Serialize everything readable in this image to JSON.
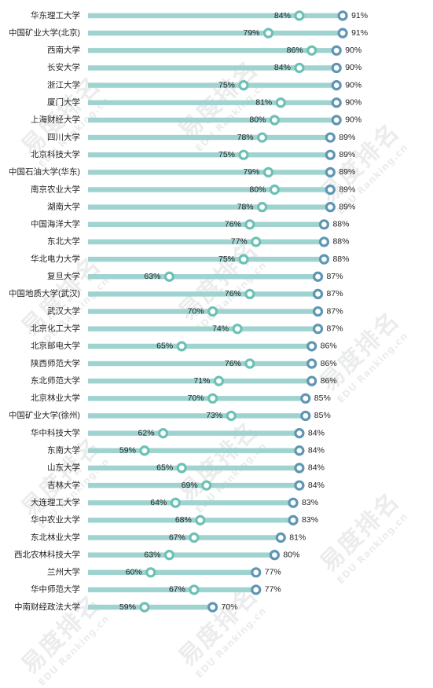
{
  "chart_data": {
    "type": "dot-range",
    "categories": [
      "华东理工大学",
      "中国矿业大学(北京)",
      "西南大学",
      "长安大学",
      "浙江大学",
      "厦门大学",
      "上海财经大学",
      "四川大学",
      "北京科技大学",
      "中国石油大学(华东)",
      "南京农业大学",
      "湖南大学",
      "中国海洋大学",
      "东北大学",
      "华北电力大学",
      "复旦大学",
      "中国地质大学(武汉)",
      "武汉大学",
      "北京化工大学",
      "北京邮电大学",
      "陕西师范大学",
      "东北师范大学",
      "北京林业大学",
      "中国矿业大学(徐州)",
      "华中科技大学",
      "东南大学",
      "山东大学",
      "吉林大学",
      "大连理工大学",
      "华中农业大学",
      "东北林业大学",
      "西北农林科技大学",
      "兰州大学",
      "华中师范大学",
      "中南财经政法大学"
    ],
    "series": [
      {
        "values": [
          84,
          79,
          86,
          84,
          75,
          81,
          80,
          78,
          75,
          79,
          80,
          78,
          76,
          77,
          75,
          63,
          76,
          70,
          74,
          65,
          76,
          71,
          70,
          73,
          62,
          59,
          65,
          69,
          64,
          68,
          67,
          63,
          60,
          67,
          59
        ]
      },
      {
        "values": [
          91,
          91,
          90,
          90,
          90,
          90,
          90,
          89,
          89,
          89,
          89,
          89,
          88,
          88,
          88,
          87,
          87,
          87,
          87,
          86,
          86,
          86,
          85,
          85,
          84,
          84,
          84,
          84,
          83,
          83,
          81,
          80,
          77,
          77,
          70
        ]
      }
    ],
    "label_suffix": "%",
    "watermark": {
      "brand": "易度排名",
      "url": "EDU Ranking.cn"
    },
    "colors": {
      "bar": "#9fd3cf",
      "low_marker": "#6cc1b4",
      "high_marker": "#5f96b4",
      "text": "#222222",
      "watermark": "#d8dadc"
    }
  }
}
